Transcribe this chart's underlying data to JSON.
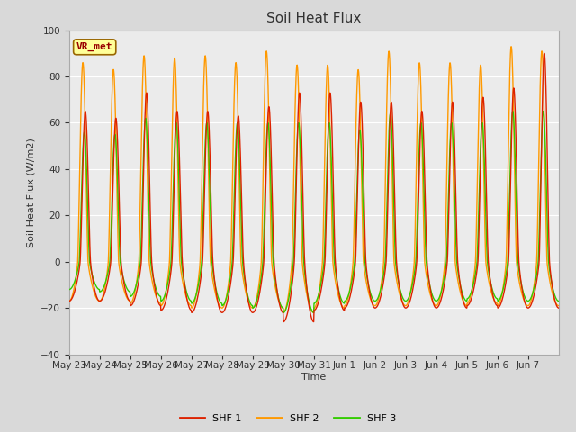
{
  "title": "Soil Heat Flux",
  "ylabel": "Soil Heat Flux (W/m2)",
  "xlabel": "Time",
  "ylim": [
    -40,
    100
  ],
  "yticks": [
    -40,
    -20,
    0,
    20,
    40,
    60,
    80,
    100
  ],
  "legend_labels": [
    "SHF 1",
    "SHF 2",
    "SHF 3"
  ],
  "annotation_text": "VR_met",
  "annotation_color": "#990000",
  "annotation_bg": "#ffff99",
  "annotation_border": "#996600",
  "line_colors": [
    "#dd2200",
    "#ff9900",
    "#33cc00"
  ],
  "bg_color": "#d9d9d9",
  "plot_bg": "#ebebeb",
  "grid_color": "#ffffff",
  "n_days": 16,
  "points_per_day": 96,
  "tick_labels": [
    "May 23",
    "May 24",
    "May 25",
    "May 26",
    "May 27",
    "May 28",
    "May 29",
    "May 30",
    "May 31",
    "Jun 1",
    "Jun 2",
    "Jun 3",
    "Jun 4",
    "Jun 5",
    "Jun 6",
    "Jun 7"
  ]
}
